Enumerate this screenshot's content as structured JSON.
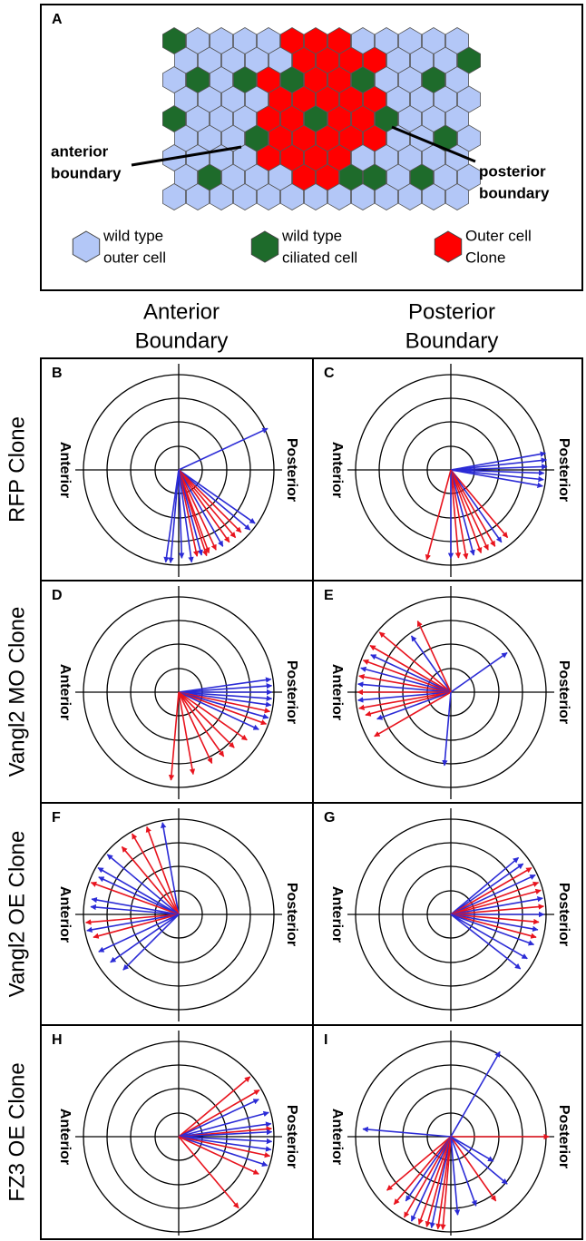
{
  "panel_a": {
    "label": "A",
    "anterior_boundary": [
      "anterior",
      "boundary"
    ],
    "posterior_boundary": [
      "posterior",
      "boundary"
    ],
    "legend": [
      [
        "wild type",
        "outer cell"
      ],
      [
        "wild type",
        "ciliated cell"
      ],
      [
        "Outer cell",
        "Clone"
      ]
    ]
  },
  "column_headers": [
    [
      "Anterior",
      "Boundary"
    ],
    [
      "Posterior",
      "Boundary"
    ]
  ],
  "row_labels": [
    "RFP Clone",
    "Vangl2 MO Clone",
    "Vangl2 OE Clone",
    "FZ3 OE Clone"
  ],
  "panels": [
    {
      "label": "B"
    },
    {
      "label": "C"
    },
    {
      "label": "D"
    },
    {
      "label": "E"
    },
    {
      "label": "F"
    },
    {
      "label": "G"
    },
    {
      "label": "H"
    },
    {
      "label": "I"
    }
  ],
  "side_labels": {
    "left": "Anterior",
    "right": "Posterior"
  }
}
